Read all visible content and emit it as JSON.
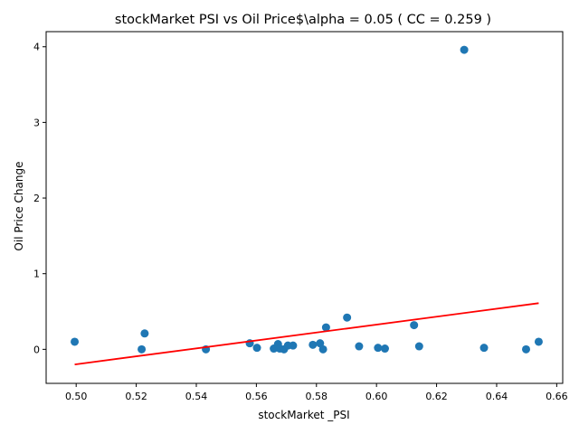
{
  "chart_data": {
    "type": "scatter",
    "title": "stockMarket  PSI vs Oil Price$\\alpha = 0.05 ( CC = 0.259 )",
    "xlabel": "stockMarket _PSI",
    "ylabel": "Oil Price Change",
    "xlim": [
      0.49,
      0.662
    ],
    "ylim": [
      -0.45,
      4.2
    ],
    "xticks": [
      0.5,
      0.52,
      0.54,
      0.56,
      0.58,
      0.6,
      0.62,
      0.64,
      0.66
    ],
    "xtick_labels": [
      "0.50",
      "0.52",
      "0.54",
      "0.56",
      "0.58",
      "0.60",
      "0.62",
      "0.64",
      "0.66"
    ],
    "yticks": [
      0,
      1,
      2,
      3,
      4
    ],
    "ytick_labels": [
      "0",
      "1",
      "2",
      "3",
      "4"
    ],
    "grid": false,
    "series": [
      {
        "kind": "points",
        "color": "#1f77b4",
        "x": [
          0.4995,
          0.5218,
          0.5228,
          0.5432,
          0.5578,
          0.5602,
          0.5658,
          0.5672,
          0.5678,
          0.5692,
          0.5705,
          0.5722,
          0.5788,
          0.5812,
          0.5822,
          0.5832,
          0.5902,
          0.5942,
          0.6005,
          0.6028,
          0.6125,
          0.6142,
          0.6292,
          0.6358,
          0.6498,
          0.654
        ],
        "y": [
          0.1,
          0.0,
          0.21,
          0.0,
          0.08,
          0.02,
          0.01,
          0.07,
          0.01,
          0.0,
          0.05,
          0.05,
          0.06,
          0.08,
          0.0,
          0.29,
          0.42,
          0.04,
          0.02,
          0.01,
          0.32,
          0.04,
          3.96,
          0.02,
          0.0,
          0.1
        ]
      },
      {
        "kind": "regression-line",
        "color": "#ff0000",
        "x": [
          0.4995,
          0.654
        ],
        "y": [
          -0.2,
          0.61
        ]
      }
    ]
  }
}
